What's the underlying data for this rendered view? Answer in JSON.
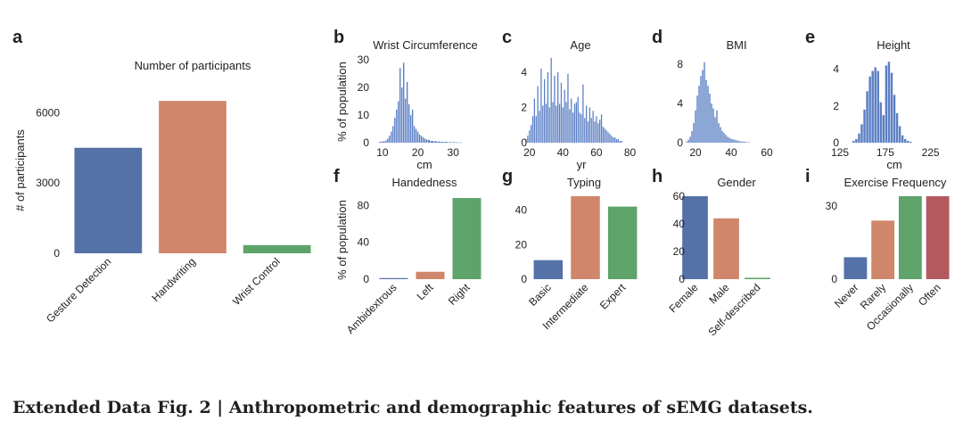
{
  "caption": "Extended Data Fig. 2 | Anthropometric and demographic features of sEMG datasets.",
  "colors": {
    "blue": "#5471a8",
    "orange": "#d0866a",
    "green": "#5da36a",
    "red": "#b45a5e",
    "hist": "#5b7fc4"
  },
  "chart_data": [
    {
      "id": "a",
      "type": "bar",
      "panel_label": "a",
      "title": "Number of participants",
      "xlabel": "",
      "ylabel": "# of participants",
      "categories": [
        "Gesture Detection",
        "Handwriting",
        "Wrist Control"
      ],
      "values": [
        4500,
        6500,
        350
      ],
      "bar_colors": [
        "#5471a8",
        "#d0866a",
        "#5da36a"
      ],
      "ylim": [
        0,
        7000
      ],
      "yticks": [
        0,
        3000,
        6000
      ],
      "ytick_labels": [
        "0",
        "3000",
        "6000"
      ]
    },
    {
      "id": "b",
      "type": "bar",
      "panel_label": "b",
      "title": "Wrist Circumference",
      "xlabel": "cm",
      "ylabel": "% of population",
      "x": [
        9.5,
        10.5,
        11,
        11.5,
        12,
        12.5,
        13,
        13.5,
        14,
        14.5,
        15,
        15.5,
        16,
        16.5,
        17,
        17.5,
        18,
        18.5,
        19,
        19.5,
        20,
        20.5,
        21,
        21.5,
        22,
        22.5,
        23,
        24,
        25,
        26,
        27,
        28,
        29,
        30,
        31,
        32
      ],
      "values": [
        0.3,
        0.5,
        0.8,
        1.5,
        2.5,
        4,
        6,
        9,
        12,
        15,
        27,
        20,
        29,
        16,
        22,
        14,
        10,
        12,
        6,
        5,
        4,
        3,
        2.5,
        2,
        1.5,
        1.2,
        1,
        0.6,
        0.5,
        0.4,
        0.3,
        0.3,
        0.2,
        0.2,
        0.1,
        0.1
      ],
      "xlim": [
        7,
        37
      ],
      "ylim": [
        0,
        32
      ],
      "xticks": [
        10,
        20,
        30
      ],
      "xtick_labels": [
        "10",
        "20",
        "30"
      ],
      "yticks": [
        0,
        10,
        20,
        30
      ],
      "ytick_labels": [
        "0",
        "10",
        "20",
        "30"
      ]
    },
    {
      "id": "c",
      "type": "bar",
      "panel_label": "c",
      "title": "Age",
      "xlabel": "yr",
      "ylabel": "",
      "x": [
        18,
        19,
        20,
        21,
        22,
        23,
        24,
        25,
        26,
        27,
        28,
        29,
        30,
        31,
        32,
        33,
        34,
        35,
        36,
        37,
        38,
        39,
        40,
        41,
        42,
        43,
        44,
        45,
        46,
        47,
        48,
        49,
        50,
        51,
        52,
        53,
        54,
        55,
        56,
        57,
        58,
        59,
        60,
        61,
        62,
        63,
        64,
        65,
        66,
        67,
        68,
        69,
        70,
        71,
        72,
        73,
        74,
        75
      ],
      "values": [
        0.2,
        0.4,
        0.7,
        1.0,
        1.5,
        2.5,
        1.5,
        3.2,
        1.8,
        4.2,
        2.1,
        3.6,
        2.2,
        4.0,
        2.0,
        4.8,
        2.3,
        3.8,
        2.1,
        4.0,
        2.2,
        3.4,
        2.0,
        3.0,
        2.3,
        3.9,
        1.9,
        2.5,
        1.7,
        2.2,
        2.3,
        2.6,
        1.7,
        1.6,
        3.3,
        1.4,
        2.1,
        1.2,
        2.0,
        1.4,
        1.8,
        1.2,
        1.5,
        1.1,
        1.3,
        1.6,
        0.9,
        0.8,
        0.7,
        0.6,
        0.5,
        0.4,
        0.3,
        0.3,
        0.2,
        0.2,
        0.1,
        0.1
      ],
      "xlim": [
        18,
        84
      ],
      "ylim": [
        0,
        5
      ],
      "xticks": [
        20,
        40,
        60,
        80
      ],
      "xtick_labels": [
        "20",
        "40",
        "60",
        "80"
      ],
      "yticks": [
        0,
        2,
        4
      ],
      "ytick_labels": [
        "0",
        "2",
        "4"
      ]
    },
    {
      "id": "d",
      "type": "bar",
      "panel_label": "d",
      "title": "BMI",
      "xlabel": "",
      "ylabel": "",
      "x": [
        15,
        16,
        17,
        18,
        19,
        20,
        21,
        22,
        23,
        24,
        25,
        26,
        27,
        28,
        29,
        30,
        31,
        32,
        33,
        34,
        35,
        36,
        37,
        38,
        39,
        40,
        41,
        42,
        43,
        44,
        45,
        46,
        47,
        48,
        49,
        50
      ],
      "values": [
        0.1,
        0.3,
        0.6,
        1.2,
        2.0,
        3.3,
        4.8,
        5.8,
        6.8,
        7.4,
        8.2,
        6.4,
        5.8,
        5.0,
        4.0,
        3.5,
        2.6,
        3.3,
        2.0,
        1.6,
        1.2,
        1.0,
        0.8,
        0.6,
        0.5,
        0.4,
        0.35,
        0.3,
        0.25,
        0.2,
        0.15,
        0.12,
        0.1,
        0.1,
        0.05,
        0.05
      ],
      "xlim": [
        9,
        74
      ],
      "ylim": [
        0,
        9
      ],
      "xticks": [
        20,
        40,
        60
      ],
      "xtick_labels": [
        "20",
        "40",
        "60"
      ],
      "yticks": [
        0,
        4,
        8
      ],
      "ytick_labels": [
        "0",
        "4",
        "8"
      ]
    },
    {
      "id": "e",
      "type": "bar",
      "panel_label": "e",
      "title": "Height",
      "xlabel": "cm",
      "ylabel": "",
      "x": [
        140,
        143,
        146,
        149,
        152,
        155,
        158,
        161,
        164,
        167,
        170,
        173,
        176,
        179,
        182,
        185,
        188,
        191,
        194,
        197,
        200,
        203
      ],
      "values": [
        0.1,
        0.2,
        0.5,
        1.0,
        1.8,
        2.8,
        3.6,
        3.9,
        4.1,
        3.9,
        2.2,
        1.5,
        4.2,
        4.4,
        3.8,
        2.6,
        1.6,
        0.9,
        0.4,
        0.2,
        0.1,
        0.05
      ],
      "xlim": [
        118,
        248
      ],
      "ylim": [
        0,
        4.8
      ],
      "xticks": [
        125,
        175,
        225
      ],
      "xtick_labels": [
        "125",
        "175",
        "225"
      ],
      "yticks": [
        0,
        2,
        4
      ],
      "ytick_labels": [
        "0",
        "2",
        "4"
      ]
    },
    {
      "id": "f",
      "type": "bar",
      "panel_label": "f",
      "title": "Handedness",
      "xlabel": "",
      "ylabel": "% of population",
      "categories": [
        "Ambidextrous",
        "Left",
        "Right"
      ],
      "values": [
        1,
        8,
        88
      ],
      "bar_colors": [
        "#5471a8",
        "#d0866a",
        "#5da36a"
      ],
      "ylim": [
        0,
        90
      ],
      "yticks": [
        0,
        40,
        80
      ],
      "ytick_labels": [
        "0",
        "40",
        "80"
      ]
    },
    {
      "id": "g",
      "type": "bar",
      "panel_label": "g",
      "title": "Typing",
      "xlabel": "",
      "ylabel": "",
      "categories": [
        "Basic",
        "Intermediate",
        "Expert"
      ],
      "values": [
        11,
        48,
        42
      ],
      "bar_colors": [
        "#5471a8",
        "#d0866a",
        "#5da36a"
      ],
      "ylim": [
        0,
        48
      ],
      "yticks": [
        0,
        20,
        40
      ],
      "ytick_labels": [
        "0",
        "20",
        "40"
      ]
    },
    {
      "id": "h",
      "type": "bar",
      "panel_label": "h",
      "title": "Gender",
      "xlabel": "",
      "ylabel": "",
      "categories": [
        "Female",
        "Male",
        "Self-described"
      ],
      "values": [
        60,
        44,
        1
      ],
      "bar_colors": [
        "#5471a8",
        "#d0866a",
        "#5da36a"
      ],
      "ylim": [
        0,
        60
      ],
      "yticks": [
        0,
        20,
        40,
        60
      ],
      "ytick_labels": [
        "0",
        "20",
        "40",
        "60"
      ]
    },
    {
      "id": "i",
      "type": "bar",
      "panel_label": "i",
      "title": "Exercise Frequency",
      "xlabel": "",
      "ylabel": "",
      "categories": [
        "Never",
        "Rarely",
        "Occasionally",
        "Often"
      ],
      "values": [
        9,
        24,
        34,
        34
      ],
      "bar_colors": [
        "#5471a8",
        "#d0866a",
        "#5da36a",
        "#b45a5e"
      ],
      "ylim": [
        0,
        34
      ],
      "yticks": [
        0,
        30
      ],
      "ytick_labels": [
        "0",
        "30"
      ]
    }
  ]
}
